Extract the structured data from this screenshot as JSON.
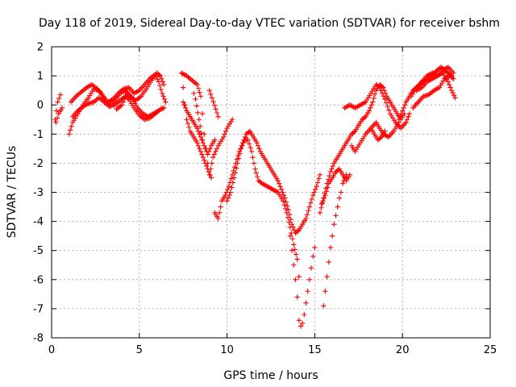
{
  "chart_data": {
    "type": "scatter",
    "title": "Day 118 of 2019, Sidereal Day-to-day VTEC variation (SDTVAR) for receiver bshm",
    "xlabel": "GPS time / hours",
    "ylabel": "SDTVAR / TECUs",
    "xlim": [
      0,
      25
    ],
    "ylim": [
      -8,
      2
    ],
    "xticks": [
      "0",
      "5",
      "10",
      "15",
      "20",
      "25"
    ],
    "yticks": [
      "2",
      "1",
      "0",
      "-1",
      "-2",
      "-3",
      "-4",
      "-5",
      "-6",
      "-7",
      "-8"
    ],
    "grid": true,
    "marker": "+",
    "color": "#ff0000",
    "tracks": [
      {
        "points": [
          [
            0.2,
            -0.5
          ],
          [
            0.35,
            0.1
          ],
          [
            0.5,
            0.35
          ]
        ]
      },
      {
        "points": [
          [
            0.25,
            -0.6
          ],
          [
            0.4,
            -0.3
          ],
          [
            0.6,
            -0.1
          ]
        ]
      },
      {
        "points": [
          [
            1.0,
            -1.0
          ],
          [
            1.2,
            -0.6
          ],
          [
            1.5,
            -0.3
          ],
          [
            1.8,
            0.0
          ],
          [
            2.1,
            0.25
          ],
          [
            2.4,
            0.55
          ],
          [
            2.7,
            0.5
          ],
          [
            3.0,
            0.2
          ],
          [
            3.3,
            -0.05
          ],
          [
            3.6,
            0.15
          ],
          [
            3.9,
            0.4
          ],
          [
            4.2,
            0.5
          ],
          [
            4.5,
            0.3
          ],
          [
            4.8,
            0.15
          ],
          [
            5.1,
            0.3
          ],
          [
            5.4,
            0.55
          ],
          [
            5.7,
            0.85
          ],
          [
            6.0,
            1.1
          ],
          [
            6.2,
            1.0
          ],
          [
            6.4,
            0.7
          ]
        ]
      },
      {
        "points": [
          [
            1.1,
            0.1
          ],
          [
            1.4,
            0.3
          ],
          [
            1.7,
            0.45
          ],
          [
            2.0,
            0.6
          ],
          [
            2.3,
            0.7
          ],
          [
            2.6,
            0.55
          ],
          [
            2.9,
            0.35
          ],
          [
            3.2,
            0.1
          ],
          [
            3.5,
            0.2
          ],
          [
            3.8,
            0.4
          ],
          [
            4.1,
            0.55
          ],
          [
            4.4,
            0.6
          ],
          [
            4.7,
            0.4
          ],
          [
            5.0,
            0.5
          ],
          [
            5.3,
            0.7
          ],
          [
            5.6,
            0.9
          ],
          [
            5.9,
            1.05
          ],
          [
            6.1,
            0.8
          ],
          [
            6.3,
            0.4
          ],
          [
            6.5,
            0.1
          ]
        ]
      },
      {
        "points": [
          [
            1.2,
            -0.4
          ],
          [
            1.5,
            -0.2
          ],
          [
            1.8,
            -0.05
          ],
          [
            2.1,
            0.05
          ],
          [
            2.4,
            0.1
          ],
          [
            2.7,
            0.25
          ],
          [
            3.0,
            0.1
          ],
          [
            3.3,
            -0.05
          ],
          [
            3.6,
            0.0
          ],
          [
            3.9,
            0.15
          ],
          [
            4.2,
            0.3
          ],
          [
            4.4,
            0.2
          ],
          [
            4.7,
            -0.1
          ],
          [
            5.0,
            -0.35
          ],
          [
            5.3,
            -0.5
          ],
          [
            5.6,
            -0.45
          ],
          [
            5.9,
            -0.3
          ],
          [
            6.2,
            -0.15
          ],
          [
            6.4,
            -0.1
          ]
        ]
      },
      {
        "points": [
          [
            3.7,
            -0.15
          ],
          [
            4.0,
            0.0
          ],
          [
            4.3,
            0.4
          ],
          [
            4.6,
            0.2
          ],
          [
            4.9,
            -0.1
          ],
          [
            5.2,
            -0.3
          ],
          [
            5.5,
            -0.4
          ],
          [
            5.8,
            -0.3
          ],
          [
            6.1,
            -0.2
          ]
        ]
      },
      {
        "points": [
          [
            7.4,
            1.1
          ],
          [
            7.7,
            1.0
          ],
          [
            8.0,
            0.85
          ],
          [
            8.3,
            0.7
          ],
          [
            8.5,
            0.3
          ],
          [
            8.6,
            -0.3
          ],
          [
            8.7,
            -1.0
          ],
          [
            8.8,
            -1.5
          ],
          [
            8.9,
            -2.0
          ],
          [
            9.0,
            -2.4
          ],
          [
            9.2,
            -1.8
          ],
          [
            9.5,
            -1.4
          ],
          [
            9.8,
            -1.1
          ],
          [
            10.0,
            -0.8
          ],
          [
            10.3,
            -0.5
          ]
        ]
      },
      {
        "points": [
          [
            7.5,
            0.6
          ],
          [
            7.6,
            0.0
          ],
          [
            7.7,
            -0.5
          ],
          [
            7.9,
            -0.9
          ],
          [
            8.1,
            -1.1
          ],
          [
            8.3,
            -1.3
          ],
          [
            8.5,
            -1.6
          ],
          [
            8.7,
            -1.9
          ],
          [
            8.9,
            -2.2
          ],
          [
            9.1,
            -2.5
          ]
        ]
      },
      {
        "points": [
          [
            7.5,
            0.1
          ],
          [
            7.7,
            -0.2
          ],
          [
            7.9,
            -0.4
          ],
          [
            8.1,
            -0.6
          ],
          [
            8.3,
            -0.8
          ],
          [
            8.5,
            -1.1
          ],
          [
            8.7,
            -1.4
          ],
          [
            8.9,
            -1.7
          ],
          [
            9.1,
            -1.4
          ],
          [
            9.3,
            -1.2
          ]
        ]
      },
      {
        "points": [
          [
            8.1,
            0.4
          ],
          [
            8.2,
            0.2
          ],
          [
            8.4,
            -0.5
          ],
          [
            8.6,
            -1.2
          ]
        ]
      },
      {
        "points": [
          [
            9.0,
            0.5
          ],
          [
            9.5,
            -0.4
          ]
        ]
      },
      {
        "points": [
          [
            9.3,
            -3.7
          ],
          [
            9.5,
            -3.9
          ],
          [
            9.7,
            -3.3
          ],
          [
            9.9,
            -3.1
          ],
          [
            10.1,
            -2.8
          ],
          [
            10.3,
            -2.4
          ],
          [
            10.5,
            -2.0
          ],
          [
            10.7,
            -1.6
          ],
          [
            10.9,
            -1.3
          ],
          [
            11.1,
            -1.0
          ],
          [
            11.3,
            -0.9
          ],
          [
            11.5,
            -1.1
          ],
          [
            11.7,
            -1.3
          ],
          [
            11.9,
            -1.6
          ],
          [
            12.1,
            -1.8
          ],
          [
            12.3,
            -2.0
          ],
          [
            12.5,
            -2.2
          ],
          [
            12.7,
            -2.4
          ],
          [
            12.9,
            -2.6
          ],
          [
            13.1,
            -2.9
          ],
          [
            13.3,
            -3.2
          ],
          [
            13.5,
            -3.6
          ],
          [
            13.7,
            -4.1
          ],
          [
            13.9,
            -4.4
          ],
          [
            14.1,
            -4.3
          ],
          [
            14.3,
            -4.1
          ],
          [
            14.5,
            -3.9
          ],
          [
            14.7,
            -3.5
          ],
          [
            14.9,
            -3.1
          ],
          [
            15.1,
            -2.8
          ],
          [
            15.3,
            -2.4
          ]
        ]
      },
      {
        "points": [
          [
            10.0,
            -3.3
          ],
          [
            10.2,
            -3.0
          ],
          [
            10.4,
            -2.5
          ],
          [
            10.6,
            -2.0
          ],
          [
            10.8,
            -1.5
          ],
          [
            11.0,
            -1.2
          ],
          [
            11.2,
            -1.2
          ],
          [
            11.4,
            -1.6
          ],
          [
            11.6,
            -2.2
          ],
          [
            11.8,
            -2.6
          ],
          [
            12.0,
            -2.7
          ],
          [
            12.3,
            -2.8
          ],
          [
            12.6,
            -2.9
          ],
          [
            12.9,
            -3.0
          ],
          [
            13.2,
            -3.3
          ],
          [
            13.4,
            -3.7
          ],
          [
            13.6,
            -4.2
          ],
          [
            13.8,
            -4.8
          ],
          [
            14.0,
            -5.3
          ],
          [
            14.1,
            -5.9
          ]
        ]
      },
      {
        "points": [
          [
            13.6,
            -4.5
          ],
          [
            13.7,
            -5.0
          ],
          [
            13.8,
            -5.5
          ],
          [
            13.9,
            -6.0
          ],
          [
            14.0,
            -6.6
          ],
          [
            14.1,
            -7.4
          ],
          [
            14.2,
            -7.6
          ],
          [
            14.3,
            -7.5
          ],
          [
            14.4,
            -7.2
          ],
          [
            14.5,
            -6.8
          ],
          [
            14.6,
            -6.4
          ],
          [
            14.7,
            -6.0
          ],
          [
            14.8,
            -5.6
          ],
          [
            14.9,
            -5.2
          ],
          [
            15.0,
            -4.9
          ]
        ]
      },
      {
        "points": [
          [
            15.4,
            -3.4
          ],
          [
            15.6,
            -3.1
          ],
          [
            15.8,
            -2.7
          ],
          [
            16.0,
            -2.5
          ],
          [
            16.2,
            -2.3
          ],
          [
            16.4,
            -2.2
          ],
          [
            16.6,
            -2.4
          ],
          [
            16.8,
            -2.6
          ],
          [
            17.0,
            -2.4
          ]
        ]
      },
      {
        "points": [
          [
            15.3,
            -3.7
          ],
          [
            15.5,
            -3.2
          ],
          [
            15.7,
            -2.7
          ],
          [
            15.9,
            -2.3
          ],
          [
            16.1,
            -2.0
          ],
          [
            16.3,
            -1.8
          ],
          [
            16.5,
            -1.6
          ],
          [
            16.7,
            -1.4
          ],
          [
            16.9,
            -1.2
          ],
          [
            17.1,
            -1.0
          ],
          [
            17.3,
            -0.9
          ],
          [
            17.5,
            -0.7
          ],
          [
            17.7,
            -0.5
          ],
          [
            17.9,
            -0.4
          ],
          [
            18.1,
            -0.2
          ],
          [
            18.3,
            0.1
          ],
          [
            18.5,
            0.5
          ],
          [
            18.7,
            0.7
          ],
          [
            18.9,
            0.6
          ],
          [
            19.1,
            0.3
          ],
          [
            19.3,
            0.1
          ],
          [
            19.5,
            -0.1
          ],
          [
            19.7,
            -0.3
          ],
          [
            19.9,
            -0.5
          ],
          [
            20.1,
            -0.3
          ]
        ]
      },
      {
        "points": [
          [
            15.5,
            -6.9
          ],
          [
            15.6,
            -6.4
          ],
          [
            15.7,
            -5.9
          ],
          [
            15.8,
            -5.4
          ],
          [
            15.9,
            -4.9
          ],
          [
            16.0,
            -4.5
          ],
          [
            16.1,
            -4.1
          ],
          [
            16.2,
            -3.8
          ],
          [
            16.3,
            -3.5
          ],
          [
            16.4,
            -3.2
          ],
          [
            16.5,
            -3.0
          ],
          [
            16.6,
            -2.7
          ],
          [
            16.8,
            -2.4
          ]
        ]
      },
      {
        "points": [
          [
            16.7,
            -0.1
          ],
          [
            17.0,
            0.0
          ],
          [
            17.3,
            -0.1
          ],
          [
            17.6,
            0.0
          ],
          [
            17.9,
            0.1
          ],
          [
            18.2,
            0.4
          ],
          [
            18.5,
            0.7
          ],
          [
            18.7,
            0.6
          ],
          [
            19.0,
            0.2
          ],
          [
            19.3,
            -0.3
          ],
          [
            19.6,
            -0.6
          ],
          [
            19.9,
            -0.8
          ],
          [
            20.2,
            -0.6
          ],
          [
            20.4,
            -0.3
          ]
        ]
      },
      {
        "points": [
          [
            17.1,
            -1.4
          ],
          [
            17.3,
            -1.6
          ],
          [
            17.6,
            -1.3
          ],
          [
            17.9,
            -1.0
          ],
          [
            18.2,
            -0.8
          ],
          [
            18.5,
            -0.6
          ],
          [
            18.7,
            -0.8
          ],
          [
            18.9,
            -1.0
          ],
          [
            19.2,
            -1.1
          ],
          [
            19.5,
            -0.9
          ],
          [
            19.8,
            -0.6
          ]
        ]
      },
      {
        "points": [
          [
            18.2,
            -0.8
          ],
          [
            18.4,
            -1.0
          ],
          [
            18.6,
            -1.2
          ],
          [
            18.8,
            -1.1
          ],
          [
            19.0,
            -0.9
          ]
        ]
      },
      {
        "points": [
          [
            19.8,
            -0.5
          ],
          [
            20.0,
            -0.2
          ],
          [
            20.2,
            0.1
          ],
          [
            20.4,
            0.3
          ],
          [
            20.6,
            0.5
          ],
          [
            20.8,
            0.6
          ],
          [
            21.0,
            0.7
          ],
          [
            21.2,
            0.8
          ],
          [
            21.4,
            0.9
          ],
          [
            21.6,
            1.0
          ],
          [
            21.8,
            1.1
          ],
          [
            22.0,
            1.2
          ],
          [
            22.2,
            1.3
          ],
          [
            22.4,
            1.2
          ],
          [
            22.6,
            1.1
          ],
          [
            22.8,
            1.0
          ]
        ]
      },
      {
        "points": [
          [
            20.5,
            0.3
          ],
          [
            20.8,
            0.6
          ],
          [
            21.1,
            0.8
          ],
          [
            21.4,
            1.0
          ],
          [
            21.7,
            1.1
          ],
          [
            22.0,
            1.0
          ],
          [
            22.3,
            1.1
          ],
          [
            22.6,
            0.8
          ],
          [
            22.8,
            0.5
          ],
          [
            23.0,
            0.25
          ]
        ]
      },
      {
        "points": [
          [
            20.6,
            -0.1
          ],
          [
            20.9,
            0.1
          ],
          [
            21.2,
            0.3
          ],
          [
            21.5,
            0.35
          ],
          [
            21.8,
            0.5
          ],
          [
            22.1,
            0.6
          ],
          [
            22.4,
            0.9
          ],
          [
            22.7,
            1.0
          ],
          [
            22.9,
            0.9
          ]
        ]
      },
      {
        "points": [
          [
            20.8,
            0.5
          ],
          [
            21.1,
            0.6
          ],
          [
            21.4,
            0.8
          ],
          [
            21.7,
            0.9
          ],
          [
            22.0,
            1.0
          ],
          [
            22.3,
            1.2
          ],
          [
            22.6,
            1.3
          ],
          [
            22.9,
            1.1
          ]
        ]
      }
    ]
  }
}
